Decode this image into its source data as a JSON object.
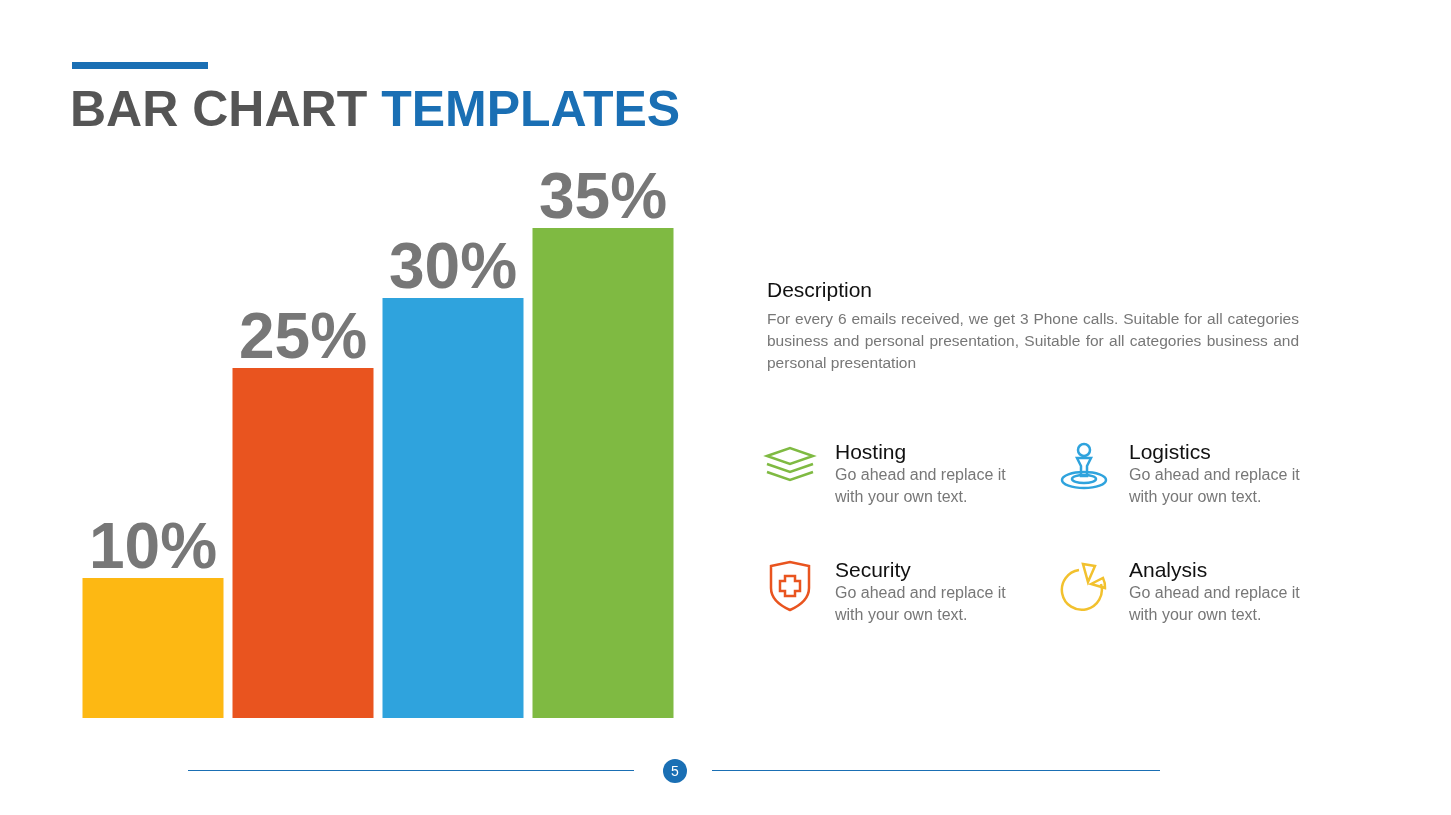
{
  "chart_data": {
    "type": "bar",
    "title": "BAR CHART TEMPLATES",
    "categories": [
      null,
      null,
      null,
      null
    ],
    "values": [
      10,
      25,
      30,
      35
    ],
    "colors": [
      "#fdb813",
      "#e9541f",
      "#2fa3dd",
      "#7fba42"
    ],
    "value_labels": [
      "10%",
      "25%",
      "30%",
      "35%"
    ],
    "annotations": [
      "Description",
      "For every 6 emails received, we get 3 Phone calls. Suitable for all categories business and personal presentation, Suitable for all categories business and personal presentation",
      "Hosting",
      "Go ahead and replace it with your own text.",
      "Logistics",
      "Go ahead and replace it with your own text.",
      "Security",
      "Go ahead and replace it with your own text.",
      "Analysis",
      "Go ahead and replace it with your own text.",
      "5"
    ]
  }
}
